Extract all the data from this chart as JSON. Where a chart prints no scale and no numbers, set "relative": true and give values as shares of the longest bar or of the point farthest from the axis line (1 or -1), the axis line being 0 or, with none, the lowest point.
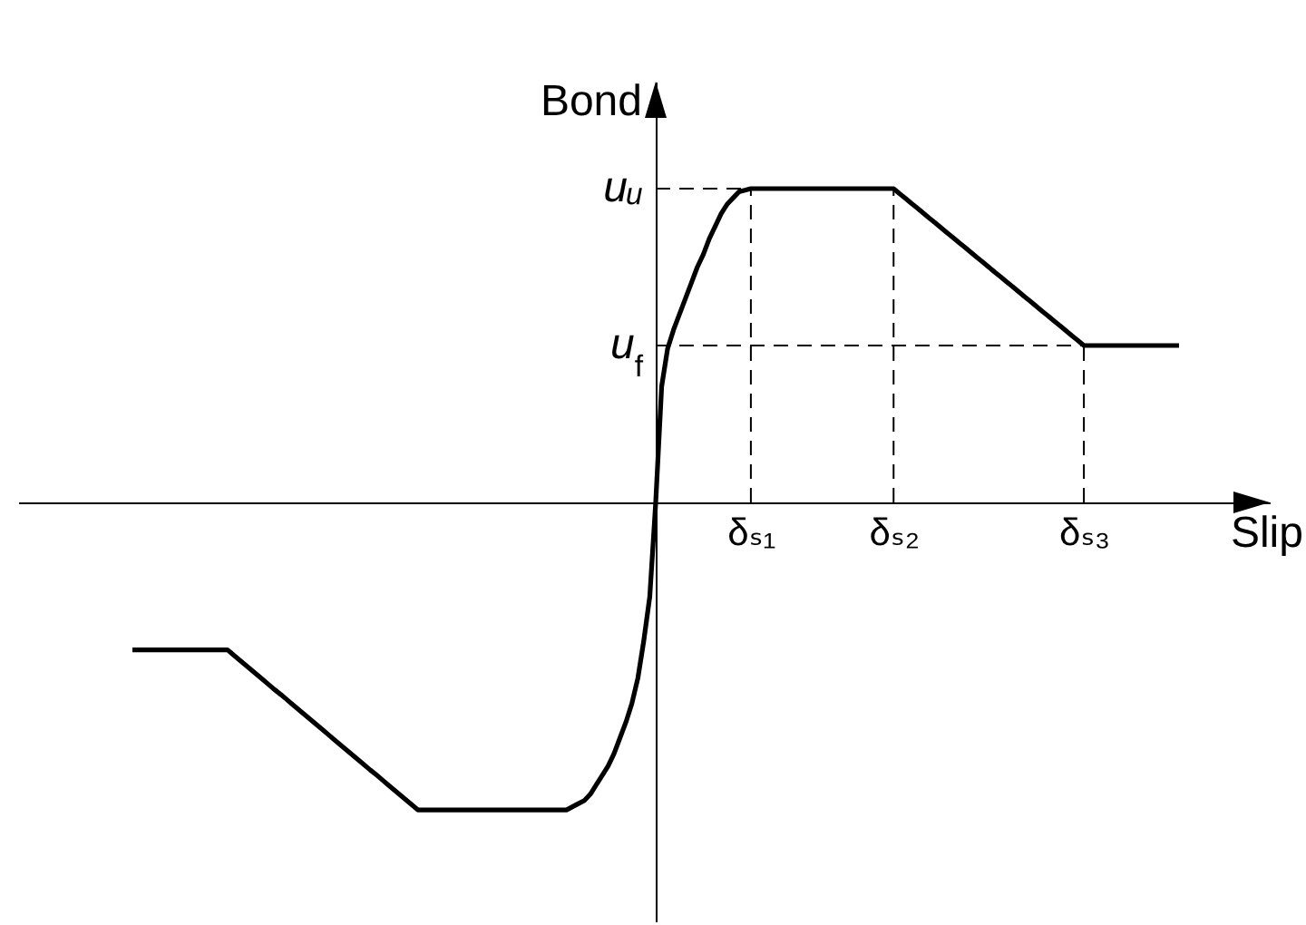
{
  "chart_data": {
    "type": "line",
    "relative": true,
    "xlabel": "Slip",
    "ylabel": "Bond",
    "categories": [
      null,
      null,
      null,
      null,
      null,
      null,
      null,
      null,
      null,
      null,
      null,
      null,
      null,
      null,
      null,
      null,
      null,
      null,
      null,
      null,
      null,
      null,
      null,
      null,
      null,
      null,
      null,
      null,
      null,
      null,
      null,
      null,
      null,
      null,
      null,
      null,
      null,
      null,
      null,
      null,
      null,
      null,
      null,
      null,
      null,
      null,
      null,
      null,
      null,
      null,
      null,
      null,
      null,
      null,
      null,
      null,
      null,
      null,
      null,
      null,
      null,
      null,
      null,
      null,
      null,
      null,
      null,
      null,
      null,
      null,
      null,
      null,
      null,
      null,
      null,
      null,
      null,
      null,
      null,
      null,
      null,
      null,
      null,
      null,
      null,
      null,
      null,
      null,
      null,
      null,
      null,
      null,
      null,
      null,
      null,
      null,
      null,
      null,
      null,
      null,
      null,
      null,
      null,
      null,
      "δₛ₁",
      null,
      null,
      null,
      null,
      null,
      null,
      null,
      null,
      null,
      null,
      null,
      null,
      null,
      null,
      null,
      null,
      null,
      null,
      null,
      null,
      null,
      null,
      null,
      "δₛ₂",
      null,
      null,
      null,
      null,
      null,
      null,
      null,
      null,
      null,
      null,
      null,
      null,
      null,
      null,
      null,
      null,
      null,
      null,
      null,
      null,
      null,
      null,
      null,
      null,
      null,
      null,
      null,
      null,
      null,
      null,
      null,
      "δₛ₃",
      null,
      null,
      null,
      null,
      null,
      null,
      null,
      null,
      null,
      null,
      null,
      null,
      null,
      null,
      null,
      null
    ],
    "series": [
      {
        "color": "#000000",
        "line_style": "solid",
        "values": [
          -0.47,
          -0.47,
          -0.47,
          -0.47,
          -0.47,
          -0.47,
          -0.47,
          -0.47,
          -0.47,
          -0.47,
          -0.47,
          -0.47,
          -0.47,
          -0.47,
          -0.47,
          -0.47,
          -0.47,
          -0.486,
          -0.502,
          -0.518,
          -0.534,
          -0.55,
          -0.566,
          -0.582,
          -0.598,
          -0.613,
          -0.629,
          -0.645,
          -0.661,
          -0.677,
          -0.693,
          -0.709,
          -0.725,
          -0.741,
          -0.757,
          -0.773,
          -0.789,
          -0.805,
          -0.821,
          -0.837,
          -0.853,
          -0.868,
          -0.884,
          -0.9,
          -0.916,
          -0.932,
          -0.948,
          -0.964,
          -0.98,
          -0.98,
          -0.98,
          -0.98,
          -0.98,
          -0.98,
          -0.98,
          -0.98,
          -0.98,
          -0.98,
          -0.98,
          -0.98,
          -0.98,
          -0.98,
          -0.98,
          -0.98,
          -0.98,
          -0.98,
          -0.98,
          -0.98,
          -0.98,
          -0.98,
          -0.98,
          -0.98,
          -0.98,
          -0.98,
          -0.97,
          -0.96,
          -0.95,
          -0.93,
          -0.9,
          -0.87,
          -0.84,
          -0.8,
          -0.75,
          -0.7,
          -0.64,
          -0.56,
          -0.44,
          -0.3,
          0,
          0.37,
          0.49,
          0.55,
          0.6,
          0.65,
          0.7,
          0.75,
          0.79,
          0.84,
          0.88,
          0.92,
          0.95,
          0.97,
          0.99,
          0.995,
          1,
          1,
          1,
          1,
          1,
          1,
          1,
          1,
          1,
          1,
          1,
          1,
          1,
          1,
          1,
          1,
          1,
          1,
          1,
          1,
          1,
          1,
          1,
          1,
          1,
          0.984,
          0.969,
          0.953,
          0.938,
          0.922,
          0.906,
          0.891,
          0.875,
          0.859,
          0.844,
          0.828,
          0.813,
          0.797,
          0.781,
          0.766,
          0.75,
          0.734,
          0.719,
          0.703,
          0.688,
          0.672,
          0.656,
          0.641,
          0.625,
          0.609,
          0.594,
          0.578,
          0.563,
          0.547,
          0.531,
          0.516,
          0.5,
          0.5,
          0.5,
          0.5,
          0.5,
          0.5,
          0.5,
          0.5,
          0.5,
          0.5,
          0.5,
          0.5,
          0.5,
          0.5,
          0.5,
          0.5,
          0.5
        ]
      }
    ],
    "ref_lines": [
      {
        "axis": "y",
        "value": 1,
        "label": "uᵤ",
        "color": "#000000",
        "line_style": "dashed"
      },
      {
        "axis": "y",
        "value": 0.5,
        "label": "u$_{f}$",
        "color": "#000000",
        "line_style": "dashed"
      },
      {
        "axis": "x",
        "value": "δₛ₁",
        "color": "#000000",
        "line_style": "dashed"
      },
      {
        "axis": "x",
        "value": "δₛ₂",
        "color": "#000000",
        "line_style": "dashed"
      },
      {
        "axis": "x",
        "value": "δₛ₃",
        "color": "#000000",
        "line_style": "dashed"
      }
    ]
  }
}
